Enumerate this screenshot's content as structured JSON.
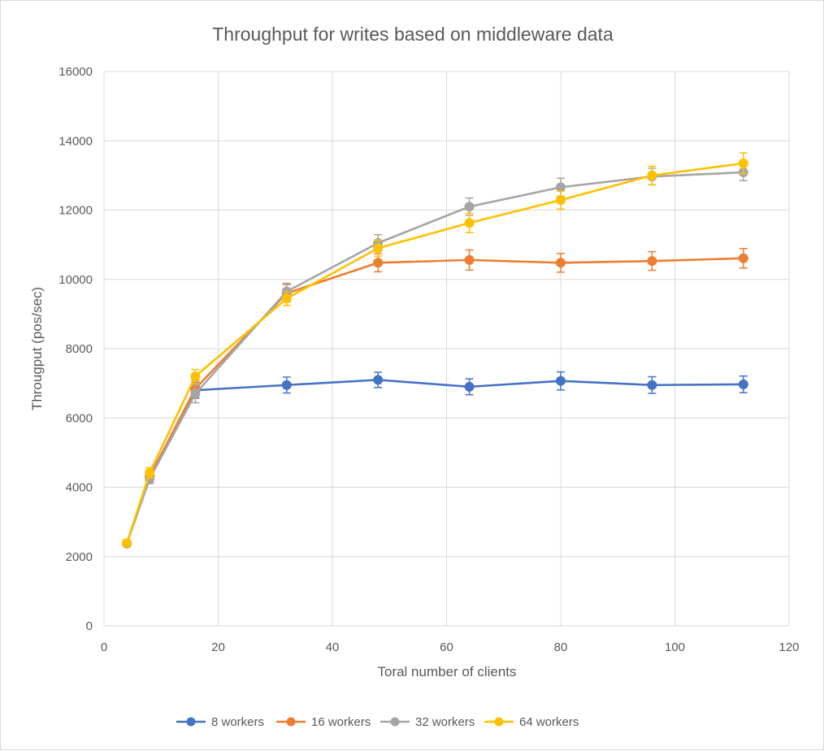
{
  "chart_data": {
    "type": "line",
    "title": "Throughput for writes based on middleware data",
    "xlabel": "Toral number of clients",
    "ylabel": "Througput (pos/sec)",
    "xlim": [
      0,
      120
    ],
    "ylim": [
      0,
      16000
    ],
    "x_ticks": [
      0,
      20,
      40,
      60,
      80,
      100,
      120
    ],
    "y_ticks": [
      0,
      2000,
      4000,
      6000,
      8000,
      10000,
      12000,
      14000,
      16000
    ],
    "grid": "major gridlines on both axes",
    "legend_position": "bottom",
    "x": [
      4,
      8,
      16,
      32,
      48,
      64,
      80,
      96,
      112
    ],
    "series": [
      {
        "name": "8 workers",
        "color": "#4472C4",
        "values": [
          2380,
          4320,
          6800,
          6950,
          7100,
          6900,
          7070,
          6950,
          6970
        ],
        "errors": [
          80,
          150,
          230,
          230,
          220,
          230,
          260,
          240,
          240
        ]
      },
      {
        "name": "16 workers",
        "color": "#ED7D31",
        "values": [
          2380,
          4300,
          6850,
          9600,
          10480,
          10560,
          10480,
          10530,
          10610
        ],
        "errors": [
          80,
          150,
          230,
          250,
          260,
          290,
          270,
          270,
          280
        ]
      },
      {
        "name": "32 workers",
        "color": "#A5A5A5",
        "values": [
          2370,
          4250,
          6700,
          9650,
          11050,
          12100,
          12660,
          12970,
          13090
        ],
        "errors": [
          80,
          150,
          260,
          240,
          240,
          250,
          260,
          240,
          240
        ]
      },
      {
        "name": "64 workers",
        "color": "#FFC000",
        "values": [
          2390,
          4420,
          7200,
          9450,
          10900,
          11630,
          12290,
          13000,
          13350
        ],
        "errors": [
          80,
          150,
          200,
          200,
          230,
          280,
          260,
          270,
          300
        ]
      }
    ]
  }
}
